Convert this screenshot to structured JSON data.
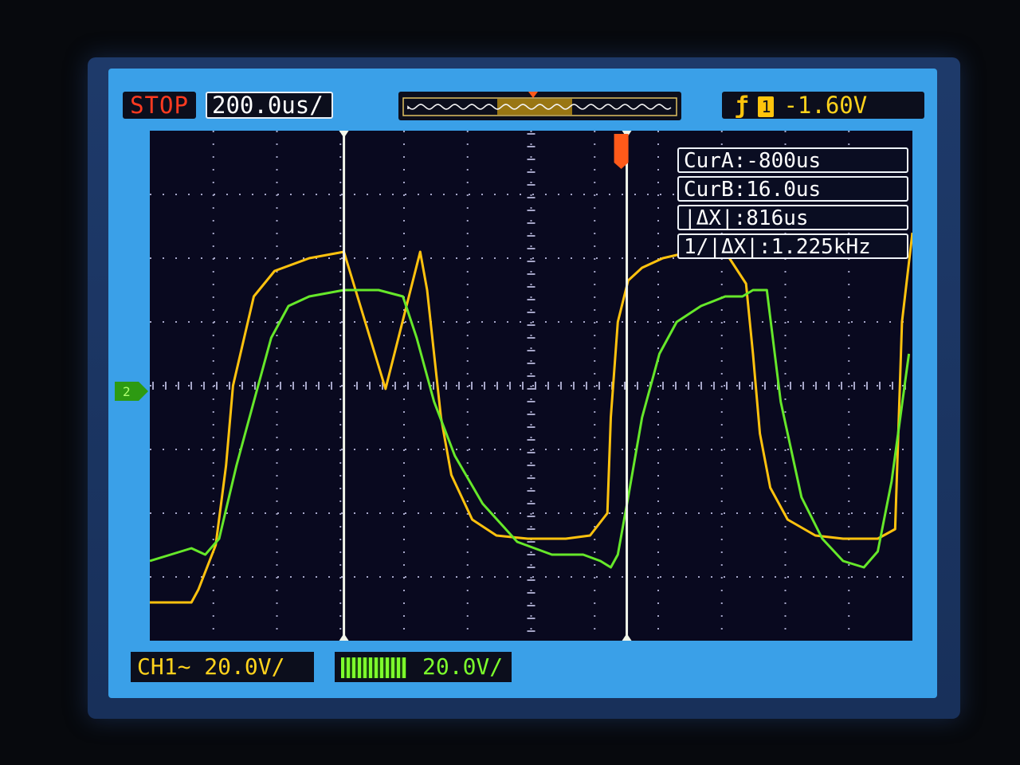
{
  "header": {
    "run_state": "STOP",
    "timebase": "200.0us/",
    "trigger_level": "-1.60V",
    "trigger_source": "1"
  },
  "measurements": {
    "cur_a": "CurA:-800us",
    "cur_b": "CurB:16.0us",
    "delta_x": "|ΔX|:816us",
    "inv_delta_x": "1/|ΔX|:1.225kHz"
  },
  "channels": {
    "ch1_label": "CH1~ 20.0V/",
    "ch2_scale": "20.0V/"
  },
  "colors": {
    "ch1": "#ffc20e",
    "ch2": "#66e82a",
    "cursor": "#f2f6ea",
    "stop": "#ff3a20",
    "grid_dot": "#a6a6c8",
    "trigger_marker": "#ff5a1a"
  },
  "icons": {
    "trigger_edge": "falling-edge-icon",
    "ch2_icon": "ch2-bandwidth-icon",
    "ch2_ground": "ch2-ground-marker-icon"
  },
  "chart_data": {
    "type": "line",
    "xlim_us": [
      -1360,
      840
    ],
    "ylim_V": [
      -80,
      80
    ],
    "grid": true,
    "x_divisions": 12,
    "y_divisions": 8,
    "cursors_us": [
      -800,
      16
    ],
    "trigger_time_us": 0,
    "series": [
      {
        "name": "CH1",
        "x": [
          -1360,
          -1240,
          -1220,
          -1170,
          -1140,
          -1120,
          -1060,
          -1000,
          -900,
          -800,
          -680,
          -580,
          -560,
          -540,
          -520,
          -490,
          -430,
          -360,
          -270,
          -160,
          -90,
          -40,
          -30,
          -10,
          20,
          60,
          120,
          200,
          300,
          360,
          380,
          400,
          430,
          480,
          560,
          640,
          740,
          790,
          810,
          840
        ],
        "y": [
          -68,
          -68,
          -64,
          -50,
          -25,
          0,
          28,
          36,
          40,
          42,
          -1,
          42,
          30,
          10,
          -10,
          -28,
          -42,
          -47,
          -48,
          -48,
          -47,
          -40,
          -10,
          20,
          33,
          37,
          40,
          42,
          42,
          32,
          10,
          -15,
          -32,
          -42,
          -47,
          -48,
          -48,
          -45,
          20,
          48
        ]
      },
      {
        "name": "CH2",
        "x": [
          -1360,
          -1300,
          -1240,
          -1200,
          -1160,
          -1110,
          -1060,
          -1010,
          -960,
          -900,
          -800,
          -700,
          -630,
          -590,
          -540,
          -480,
          -400,
          -300,
          -200,
          -110,
          -60,
          -30,
          -10,
          20,
          60,
          110,
          160,
          230,
          300,
          350,
          380,
          420,
          460,
          520,
          580,
          640,
          700,
          740,
          780,
          830
        ],
        "y": [
          -55,
          -53,
          -51,
          -53,
          -48,
          -25,
          -5,
          15,
          25,
          28,
          30,
          30,
          28,
          15,
          -5,
          -22,
          -37,
          -49,
          -53,
          -53,
          -55,
          -57,
          -53,
          -35,
          -10,
          10,
          20,
          25,
          28,
          28,
          30,
          30,
          -5,
          -35,
          -48,
          -55,
          -57,
          -52,
          -30,
          10
        ]
      }
    ]
  }
}
